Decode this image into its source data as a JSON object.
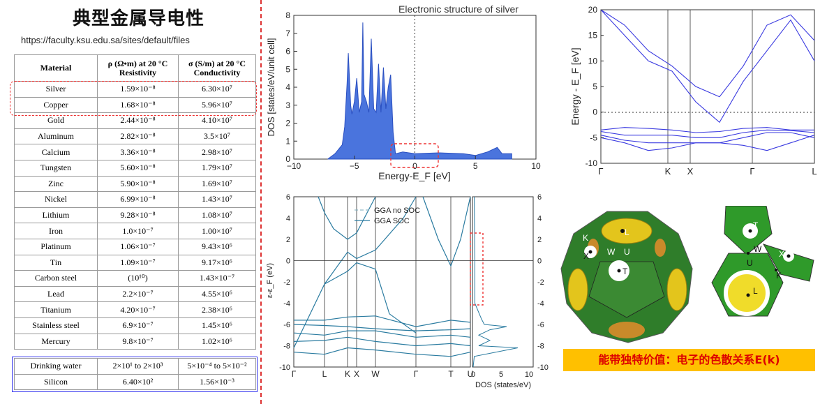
{
  "title": "典型金属导电性",
  "url": "https://faculty.ksu.edu.sa/sites/default/files",
  "table": {
    "headers": {
      "material": "Material",
      "rho1": "ρ (Ω•m) at 20 °C",
      "rho2": "Resistivity",
      "sigma1": "σ (S/m) at 20 °C",
      "sigma2": "Conductivity"
    },
    "rows": [
      [
        "Silver",
        "1.59×10⁻⁸",
        "6.30×10⁷"
      ],
      [
        "Copper",
        "1.68×10⁻⁸",
        "5.96×10⁷"
      ],
      [
        "Gold",
        "2.44×10⁻⁸",
        "4.10×10⁷"
      ],
      [
        "Aluminum",
        "2.82×10⁻⁸",
        "3.5×10⁷"
      ],
      [
        "Calcium",
        "3.36×10⁻⁸",
        "2.98×10⁷"
      ],
      [
        "Tungsten",
        "5.60×10⁻⁸",
        "1.79×10⁷"
      ],
      [
        "Zinc",
        "5.90×10⁻⁸",
        "1.69×10⁷"
      ],
      [
        "Nickel",
        "6.99×10⁻⁸",
        "1.43×10⁷"
      ],
      [
        "Lithium",
        "9.28×10⁻⁸",
        "1.08×10⁷"
      ],
      [
        "Iron",
        "1.0×10⁻⁷",
        "1.00×10⁷"
      ],
      [
        "Platinum",
        "1.06×10⁻⁷",
        "9.43×10⁶"
      ],
      [
        "Tin",
        "1.09×10⁻⁷",
        "9.17×10⁶"
      ],
      [
        "Carbon steel",
        "(10¹⁰)",
        "1.43×10⁻⁷"
      ],
      [
        "Lead",
        "2.2×10⁻⁷",
        "4.55×10⁶"
      ],
      [
        "Titanium",
        "4.20×10⁻⁷",
        "2.38×10⁶"
      ],
      [
        "Stainless steel",
        "6.9×10⁻⁷",
        "1.45×10⁶"
      ],
      [
        "Mercury",
        "9.8×10⁻⁷",
        "1.02×10⁶"
      ]
    ],
    "rows2": [
      [
        "Drinking water",
        "2×10¹ to 2×10³",
        "5×10⁻⁴ to 5×10⁻²"
      ],
      [
        "Silicon",
        "6.40×10²",
        "1.56×10⁻³"
      ]
    ]
  },
  "chart_data": [
    {
      "type": "area",
      "title": "Electronic structure of silver",
      "xlabel": "Energy-E_F [eV]",
      "ylabel": "DOS [states/eV/unit cell]",
      "xlim": [
        -10,
        10
      ],
      "ylim": [
        0,
        8
      ],
      "xticks": [
        "−10",
        "−5",
        "0",
        "5",
        "10"
      ],
      "yticks": [
        "0",
        "1",
        "2",
        "3",
        "4",
        "5",
        "6",
        "7",
        "8"
      ],
      "x": [
        -7.2,
        -6.6,
        -6.0,
        -5.8,
        -5.6,
        -5.5,
        -5.3,
        -5.2,
        -5.0,
        -4.8,
        -4.6,
        -4.4,
        -4.3,
        -4.2,
        -4.0,
        -3.8,
        -3.6,
        -3.4,
        -3.2,
        -3.0,
        -2.8,
        -2.6,
        -2.4,
        -2.2,
        -2.0,
        -1.8,
        -1.6,
        -1.0,
        0.0,
        2.0,
        4.0,
        5.0,
        6.0,
        6.8,
        7.2,
        8.0
      ],
      "y": [
        0.0,
        0.3,
        0.8,
        1.8,
        4.2,
        5.9,
        3.0,
        2.5,
        3.2,
        4.5,
        2.6,
        3.2,
        7.6,
        3.6,
        3.2,
        2.6,
        6.7,
        2.8,
        2.6,
        5.3,
        2.6,
        5.1,
        2.8,
        4.0,
        4.7,
        1.5,
        0.3,
        0.4,
        0.3,
        0.35,
        0.3,
        0.2,
        0.4,
        0.65,
        0.3,
        0.3
      ]
    },
    {
      "type": "line",
      "title": "",
      "ylabel": "Energy - E_F [eV]",
      "ylim": [
        -10,
        20
      ],
      "yticks": [
        "-10",
        "-5",
        "0",
        "5",
        "10",
        "15",
        "20"
      ],
      "kpoints": [
        "Γ",
        "K",
        "X",
        "Γ",
        "L"
      ],
      "series": []
    },
    {
      "type": "line",
      "ylabel": "ε-ε_F (eV)",
      "ylim": [
        -10,
        6
      ],
      "yticks": [
        "-10",
        "-8",
        "-6",
        "-4",
        "-2",
        "0",
        "2",
        "4",
        "6"
      ],
      "kpoints": [
        "Γ",
        "L",
        "K",
        "X",
        "W",
        "Γ",
        "T",
        "U"
      ],
      "series": [
        {
          "name": "GGA no SOC"
        },
        {
          "name": "GGA SOC"
        }
      ],
      "dos_xlabel": "DOS (states/eV)",
      "dos_xticks": [
        "0",
        "5",
        "10"
      ]
    }
  ],
  "bz": {
    "labels": [
      "L",
      "K",
      "W",
      "U",
      "X",
      "T"
    ],
    "labels2": [
      "T",
      "W",
      "U",
      "X",
      "K",
      "L"
    ]
  },
  "key_text": "能带独特价值：电子的色散关系E(k)"
}
